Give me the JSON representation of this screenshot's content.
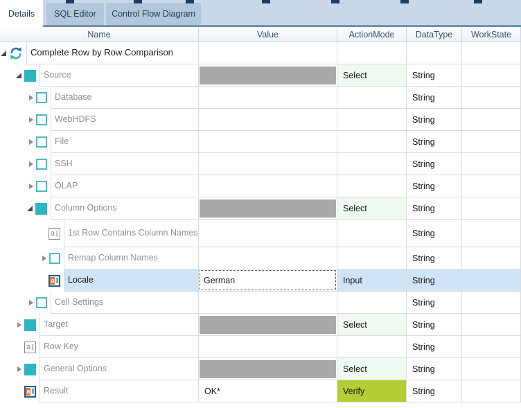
{
  "tabs": [
    {
      "label": "Details",
      "active": true
    },
    {
      "label": "SQL Editor",
      "active": false
    },
    {
      "label": "Control Flow Diagram",
      "active": false
    }
  ],
  "columns": {
    "name": "Name",
    "value": "Value",
    "action_mode": "ActionMode",
    "data_type": "DataType",
    "work_state": "WorkState"
  },
  "colors": {
    "accent_teal": "#2cb5c3",
    "selection_blue": "#cfe5f7",
    "select_action_bg": "#f0faf0",
    "verify_action_bg": "#b5cc34",
    "value_filler_gray": "#a9a9a9",
    "tab_inactive_bg": "#b3c7db",
    "tab_strip_bg": "#c9d9ea"
  },
  "rows": [
    {
      "name": "Complete Row by Row Comparison",
      "level": 0,
      "icon": "refresh",
      "expander": "expanded",
      "value_kind": "empty",
      "value": "",
      "action": "",
      "datatype": "",
      "selected": false,
      "emphasis": true,
      "tall": false
    },
    {
      "name": "Source",
      "level": 1,
      "icon": "teal",
      "expander": "expanded",
      "value_kind": "gray",
      "value": "",
      "action": "Select",
      "datatype": "String",
      "selected": false,
      "emphasis": false,
      "tall": false
    },
    {
      "name": "Database",
      "level": 2,
      "icon": "check",
      "expander": "collapsed",
      "value_kind": "empty",
      "value": "",
      "action": "",
      "datatype": "String",
      "selected": false,
      "emphasis": false,
      "tall": false
    },
    {
      "name": "WebHDFS",
      "level": 2,
      "icon": "check",
      "expander": "collapsed",
      "value_kind": "empty",
      "value": "",
      "action": "",
      "datatype": "String",
      "selected": false,
      "emphasis": false,
      "tall": false
    },
    {
      "name": "File",
      "level": 2,
      "icon": "check",
      "expander": "collapsed",
      "value_kind": "empty",
      "value": "",
      "action": "",
      "datatype": "String",
      "selected": false,
      "emphasis": false,
      "tall": false
    },
    {
      "name": "SSH",
      "level": 2,
      "icon": "check",
      "expander": "collapsed",
      "value_kind": "empty",
      "value": "",
      "action": "",
      "datatype": "String",
      "selected": false,
      "emphasis": false,
      "tall": false
    },
    {
      "name": "OLAP",
      "level": 2,
      "icon": "check",
      "expander": "collapsed",
      "value_kind": "empty",
      "value": "",
      "action": "",
      "datatype": "String",
      "selected": false,
      "emphasis": false,
      "tall": false
    },
    {
      "name": "Column Options",
      "level": 2,
      "icon": "teal",
      "expander": "expanded",
      "value_kind": "gray",
      "value": "",
      "action": "Select",
      "datatype": "String",
      "selected": false,
      "emphasis": false,
      "tall": false
    },
    {
      "name": "1st Row Contains Column Names",
      "level": 3,
      "icon": "al",
      "expander": null,
      "value_kind": "empty",
      "value": "",
      "action": "",
      "datatype": "String",
      "selected": false,
      "emphasis": false,
      "tall": true
    },
    {
      "name": "Remap Column Names",
      "level": 3,
      "icon": "check",
      "expander": "collapsed",
      "value_kind": "empty",
      "value": "",
      "action": "",
      "datatype": "String",
      "selected": false,
      "emphasis": false,
      "tall": false
    },
    {
      "name": "Locale",
      "level": 3,
      "icon": "al-active",
      "expander": null,
      "value_kind": "edit",
      "value": "German",
      "action": "Input",
      "datatype": "String",
      "selected": true,
      "emphasis": true,
      "tall": false
    },
    {
      "name": "Cell Settings",
      "level": 2,
      "icon": "check",
      "expander": "collapsed",
      "value_kind": "empty",
      "value": "",
      "action": "",
      "datatype": "String",
      "selected": false,
      "emphasis": false,
      "tall": false
    },
    {
      "name": "Target",
      "level": 1,
      "icon": "teal",
      "expander": "collapsed",
      "value_kind": "gray",
      "value": "",
      "action": "Select",
      "datatype": "String",
      "selected": false,
      "emphasis": false,
      "tall": false
    },
    {
      "name": "Row Key",
      "level": 1,
      "icon": "al",
      "expander": null,
      "value_kind": "empty",
      "value": "",
      "action": "",
      "datatype": "String",
      "selected": false,
      "emphasis": false,
      "tall": false
    },
    {
      "name": "General Options",
      "level": 1,
      "icon": "teal",
      "expander": "collapsed",
      "value_kind": "gray",
      "value": "",
      "action": "Select",
      "datatype": "String",
      "selected": false,
      "emphasis": false,
      "tall": false
    },
    {
      "name": "Result",
      "level": 1,
      "icon": "al-active",
      "expander": null,
      "value_kind": "text",
      "value": "OK*",
      "action": "Verify",
      "datatype": "String",
      "selected": false,
      "emphasis": false,
      "tall": false
    }
  ]
}
